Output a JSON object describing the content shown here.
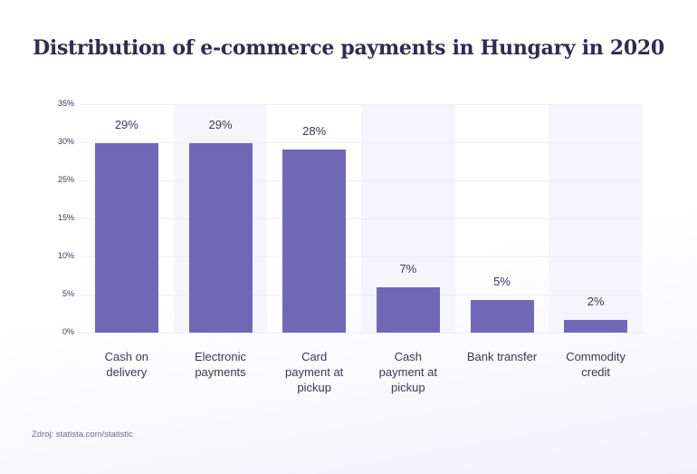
{
  "chart_data": {
    "type": "bar",
    "title": "Distribution of e-commerce payments in Hungary in 2020",
    "xlabel": "",
    "ylabel": "",
    "categories": [
      "Cash on delivery",
      "Electronic payments",
      "Card payment at pickup",
      "Cash payment at pickup",
      "Bank transfer",
      "Commodity credit"
    ],
    "values": [
      29,
      29,
      28,
      7,
      5,
      2
    ],
    "value_labels": [
      "29%",
      "29%",
      "28%",
      "7%",
      "5%",
      "2%"
    ],
    "y_ticks": [
      "35%",
      "30%",
      "25%",
      "15%",
      "10%",
      "5%",
      "0%"
    ],
    "ylim": [
      0,
      35
    ],
    "grid": true,
    "legend": null,
    "bar_color": "#7168b5"
  },
  "x_label_lines": [
    [
      "Cash on",
      "delivery"
    ],
    [
      "Electronic",
      "payments"
    ],
    [
      "Card",
      "payment at",
      "pickup"
    ],
    [
      "Cash",
      "payment at",
      "pickup"
    ],
    [
      "Bank transfer"
    ],
    [
      "Commodity",
      "credit"
    ]
  ],
  "source": "Zdroj: statista.com/statistic"
}
